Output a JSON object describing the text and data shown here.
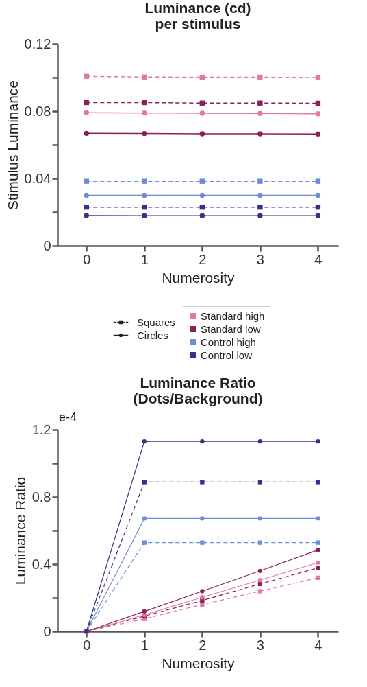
{
  "chart_data": [
    {
      "type": "line",
      "title": "Luminance (cd)\nper stimulus",
      "xlabel": "Numerosity",
      "ylabel": "Stimulus Luminance",
      "x": [
        0,
        1,
        2,
        3,
        4
      ],
      "xlim": [
        -0.5,
        4.35
      ],
      "xticks": [
        0,
        1,
        2,
        3,
        4
      ],
      "ylim": [
        0,
        0.12
      ],
      "yticks": [
        0,
        {
          "value": 0.02,
          "label": null
        },
        0.04,
        {
          "value": 0.06,
          "label": null
        },
        0.08,
        {
          "value": 0.1,
          "label": null
        },
        0.12
      ],
      "grid": false,
      "legend": "bottom",
      "annotations": [
        "Squares",
        "Circles"
      ],
      "series": [
        {
          "name": "Standard high",
          "color": "#e07aa0",
          "marker": "square",
          "line_style": "dashed",
          "values": [
            0.1007,
            0.1003,
            0.1002,
            0.1002,
            0.1
          ]
        },
        {
          "name": "Standard low",
          "color": "#8b1f5c",
          "marker": "square",
          "line_style": "dashed",
          "values": [
            0.0851,
            0.0851,
            0.0848,
            0.0848,
            0.0847
          ]
        },
        {
          "name": "Control high",
          "color": "#6a8fd4",
          "marker": "square",
          "line_style": "dashed",
          "values": [
            0.0383,
            0.0383,
            0.0383,
            0.0383,
            0.0383
          ]
        },
        {
          "name": "Control low",
          "color": "#3b2d8a",
          "marker": "square",
          "line_style": "dashed",
          "values": [
            0.023,
            0.023,
            0.023,
            0.023,
            0.023
          ]
        },
        {
          "color": "#e07aa0",
          "marker": "circle",
          "line_style": "solid",
          "values": [
            0.0791,
            0.0789,
            0.0788,
            0.0787,
            0.0785
          ]
        },
        {
          "color": "#8b1f5c",
          "marker": "circle",
          "line_style": "solid",
          "values": [
            0.0668,
            0.0667,
            0.0665,
            0.0665,
            0.0664
          ]
        },
        {
          "color": "#6a8fd4",
          "marker": "circle",
          "line_style": "solid",
          "values": [
            0.03,
            0.03,
            0.03,
            0.03,
            0.03
          ]
        },
        {
          "color": "#3b2d8a",
          "marker": "circle",
          "line_style": "solid",
          "values": [
            0.018,
            0.0179,
            0.0179,
            0.0179,
            0.0179
          ]
        }
      ]
    },
    {
      "type": "line",
      "title": "Luminance Ratio\n(Dots/Background)",
      "xlabel": "Numerosity",
      "ylabel": "Luminance Ratio",
      "x": [
        0,
        1,
        2,
        3,
        4
      ],
      "xlim": [
        -0.5,
        4.35
      ],
      "xticks": [
        0,
        1,
        2,
        3,
        4
      ],
      "ylim": [
        0,
        1.2
      ],
      "yticks": [
        0,
        {
          "value": 0.2,
          "label": null
        },
        0.4,
        {
          "value": 0.6,
          "label": null
        },
        0.8,
        {
          "value": 1.0,
          "label": null
        },
        1.2
      ],
      "grid": false,
      "annotations": [
        "e-4"
      ],
      "series": [
        {
          "color": "#e07aa0",
          "marker": "square",
          "line_style": "dashed",
          "values": [
            0,
            0.075,
            0.16,
            0.239,
            0.319
          ]
        },
        {
          "color": "#8b1f5c",
          "marker": "square",
          "line_style": "dashed",
          "values": [
            0,
            0.091,
            0.184,
            0.282,
            0.378
          ]
        },
        {
          "color": "#6a8fd4",
          "marker": "square",
          "line_style": "dashed",
          "values": [
            0,
            0.528,
            0.528,
            0.528,
            0.528
          ]
        },
        {
          "color": "#3b2d8a",
          "marker": "square",
          "line_style": "dashed",
          "values": [
            0,
            0.888,
            0.888,
            0.888,
            0.888
          ]
        },
        {
          "color": "#e07aa0",
          "marker": "circle",
          "line_style": "solid",
          "values": [
            0,
            0.098,
            0.203,
            0.305,
            0.409
          ]
        },
        {
          "color": "#8b1f5c",
          "marker": "circle",
          "line_style": "solid",
          "values": [
            0,
            0.119,
            0.239,
            0.36,
            0.484
          ]
        },
        {
          "color": "#6a8fd4",
          "marker": "circle",
          "line_style": "solid",
          "values": [
            0,
            0.672,
            0.672,
            0.672,
            0.672
          ]
        },
        {
          "color": "#3b2d8a",
          "marker": "circle",
          "line_style": "solid",
          "values": [
            0,
            1.13,
            1.13,
            1.13,
            1.13
          ]
        }
      ]
    }
  ]
}
